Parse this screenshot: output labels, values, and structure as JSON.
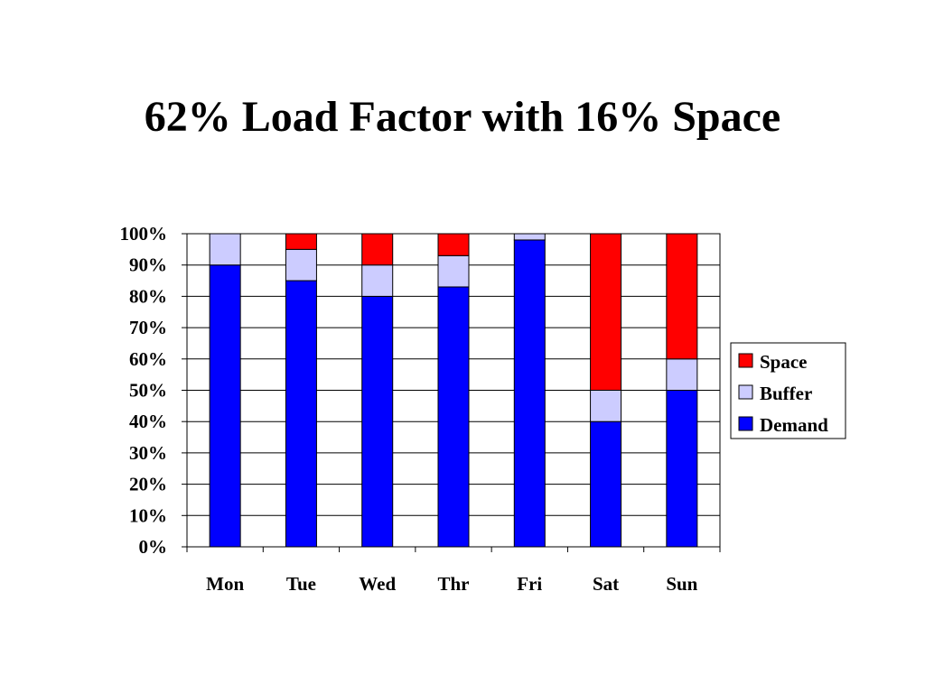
{
  "title": "62% Load Factor with 16% Space",
  "chart_data": {
    "type": "bar",
    "stacked": true,
    "categories": [
      "Mon",
      "Tue",
      "Wed",
      "Thr",
      "Fri",
      "Sat",
      "Sun"
    ],
    "series": [
      {
        "name": "Demand",
        "color": "#0000ff",
        "values": [
          90,
          85,
          80,
          83,
          98,
          40,
          50
        ]
      },
      {
        "name": "Buffer",
        "color": "#ccccff",
        "values": [
          10,
          10,
          10,
          10,
          2,
          10,
          10
        ]
      },
      {
        "name": "Space",
        "color": "#ff0000",
        "values": [
          0,
          5,
          10,
          7,
          0,
          50,
          40
        ]
      }
    ],
    "ylim": [
      0,
      100
    ],
    "yticks": [
      "0%",
      "10%",
      "20%",
      "30%",
      "40%",
      "50%",
      "60%",
      "70%",
      "80%",
      "90%",
      "100%"
    ],
    "grid": true,
    "legend": {
      "position": "right",
      "entries": [
        "Space",
        "Buffer",
        "Demand"
      ]
    }
  }
}
